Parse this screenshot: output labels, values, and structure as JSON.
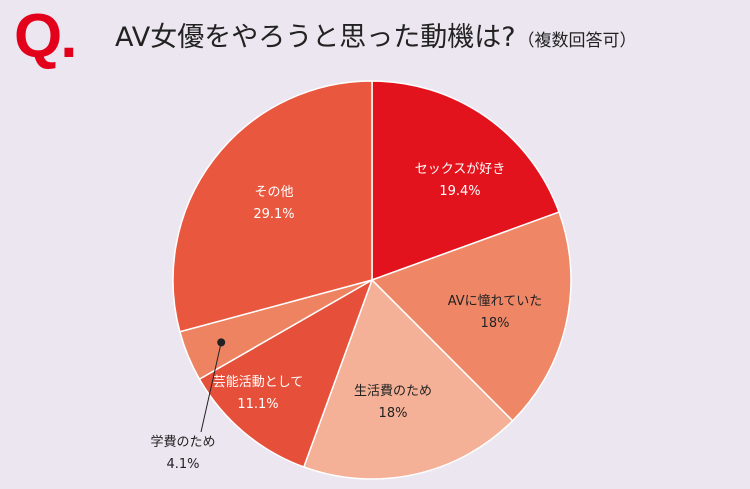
{
  "header": {
    "q_mark": "Q.",
    "title": "AV女優をやろうと思った動機は?",
    "note": "（複数回答可）"
  },
  "chart_data": {
    "type": "pie",
    "title": "AV女優をやろうと思った動機は?（複数回答可）",
    "start_angle": "12 o'clock",
    "direction": "clockwise",
    "slices": [
      {
        "label": "セックスが好き",
        "value": 19.4,
        "value_label": "19.4%",
        "color": "#e3131d"
      },
      {
        "label": "AVに憧れていた",
        "value": 18,
        "value_label": "18%",
        "color": "#ef8767"
      },
      {
        "label": "生活費のため",
        "value": 18,
        "value_label": "18%",
        "color": "#f4b197"
      },
      {
        "label": "芸能活動として",
        "value": 11.1,
        "value_label": "11.1%",
        "color": "#e6503a"
      },
      {
        "label": "学費のため",
        "value": 4.1,
        "value_label": "4.1%",
        "color": "#ee8362"
      },
      {
        "label": "その他",
        "value": 29.1,
        "value_label": "29.1%",
        "color": "#e9573e"
      }
    ]
  }
}
